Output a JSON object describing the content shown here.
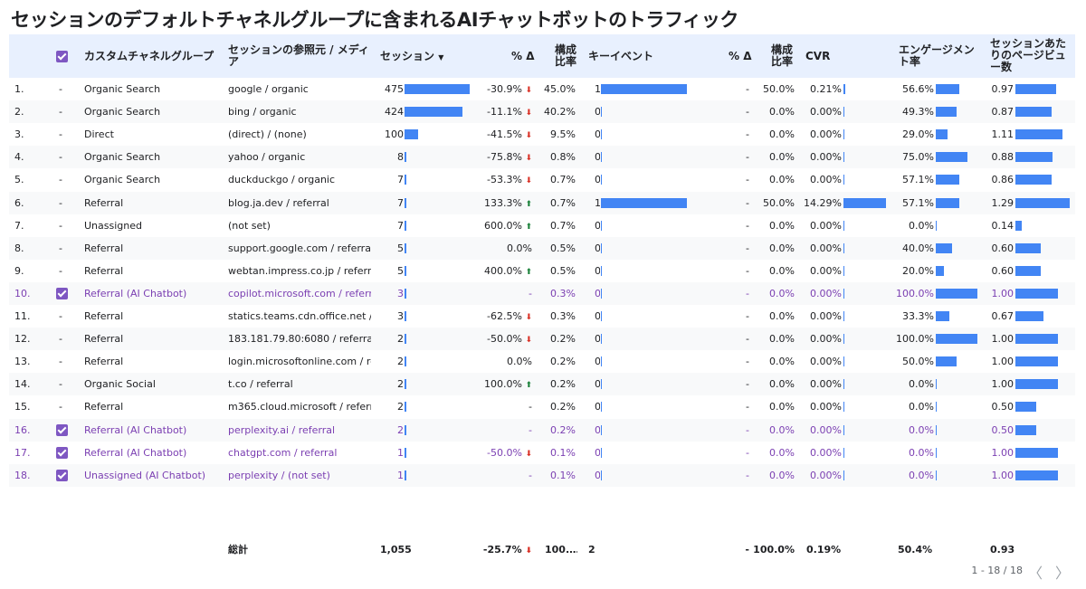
{
  "title": "セッションのデフォルトチャネルグループに含まれるAIチャットボットのトラフィック",
  "headers": {
    "channel": "カスタムチャネルグループ",
    "source1": "セッションの参照元 / メディ",
    "source2": "ア",
    "sessions": "セッション",
    "sort_icon": "▼",
    "delta1": "% Δ",
    "ratio1a": "構成",
    "ratio1b": "比率",
    "keyevent": "キーイベント",
    "delta2": "% Δ",
    "ratio2a": "構成",
    "ratio2b": "比率",
    "cvr": "CVR",
    "eng1": "エンゲージメン",
    "eng2": "ト率",
    "ppv1": "セッションあた",
    "ppv2": "りのページビュ",
    "ppv3": "ー数"
  },
  "colors": {
    "bar": "#4285f4",
    "selected_text": "#7b3fb2",
    "checkbox": "#7e57c2",
    "header_bg": "#e8f0fe",
    "down": "#d93025",
    "up": "#188038"
  },
  "rows": [
    {
      "idx": "1.",
      "sel": false,
      "channel": "Organic Search",
      "source": "google / organic",
      "sessions": "475",
      "sessions_v": 475,
      "delta": "-30.9%",
      "dir": "down",
      "ratio": "45.0%",
      "ke": "1",
      "ke_v": 1,
      "delta2": "-",
      "ratio2": "50.0%",
      "cvr": "0.21%",
      "cvr_v": 0.21,
      "eng": "56.6%",
      "eng_v": 56.6,
      "ppv": "0.97",
      "ppv_v": 0.97
    },
    {
      "idx": "2.",
      "sel": false,
      "channel": "Organic Search",
      "source": "bing / organic",
      "sessions": "424",
      "sessions_v": 424,
      "delta": "-11.1%",
      "dir": "down",
      "ratio": "40.2%",
      "ke": "0",
      "ke_v": 0,
      "delta2": "-",
      "ratio2": "0.0%",
      "cvr": "0.00%",
      "cvr_v": 0,
      "eng": "49.3%",
      "eng_v": 49.3,
      "ppv": "0.87",
      "ppv_v": 0.87
    },
    {
      "idx": "3.",
      "sel": false,
      "channel": "Direct",
      "source": "(direct) / (none)",
      "sessions": "100",
      "sessions_v": 100,
      "delta": "-41.5%",
      "dir": "down",
      "ratio": "9.5%",
      "ke": "0",
      "ke_v": 0,
      "delta2": "-",
      "ratio2": "0.0%",
      "cvr": "0.00%",
      "cvr_v": 0,
      "eng": "29.0%",
      "eng_v": 29.0,
      "ppv": "1.11",
      "ppv_v": 1.11
    },
    {
      "idx": "4.",
      "sel": false,
      "channel": "Organic Search",
      "source": "yahoo / organic",
      "sessions": "8",
      "sessions_v": 8,
      "delta": "-75.8%",
      "dir": "down",
      "ratio": "0.8%",
      "ke": "0",
      "ke_v": 0,
      "delta2": "-",
      "ratio2": "0.0%",
      "cvr": "0.00%",
      "cvr_v": 0,
      "eng": "75.0%",
      "eng_v": 75.0,
      "ppv": "0.88",
      "ppv_v": 0.88
    },
    {
      "idx": "5.",
      "sel": false,
      "channel": "Organic Search",
      "source": "duckduckgo / organic",
      "sessions": "7",
      "sessions_v": 7,
      "delta": "-53.3%",
      "dir": "down",
      "ratio": "0.7%",
      "ke": "0",
      "ke_v": 0,
      "delta2": "-",
      "ratio2": "0.0%",
      "cvr": "0.00%",
      "cvr_v": 0,
      "eng": "57.1%",
      "eng_v": 57.1,
      "ppv": "0.86",
      "ppv_v": 0.86
    },
    {
      "idx": "6.",
      "sel": false,
      "channel": "Referral",
      "source": "blog.ja.dev / referral",
      "sessions": "7",
      "sessions_v": 7,
      "delta": "133.3%",
      "dir": "up",
      "ratio": "0.7%",
      "ke": "1",
      "ke_v": 1,
      "delta2": "-",
      "ratio2": "50.0%",
      "cvr": "14.29%",
      "cvr_v": 14.29,
      "eng": "57.1%",
      "eng_v": 57.1,
      "ppv": "1.29",
      "ppv_v": 1.29
    },
    {
      "idx": "7.",
      "sel": false,
      "channel": "Unassigned",
      "source": "(not set)",
      "sessions": "7",
      "sessions_v": 7,
      "delta": "600.0%",
      "dir": "up",
      "ratio": "0.7%",
      "ke": "0",
      "ke_v": 0,
      "delta2": "-",
      "ratio2": "0.0%",
      "cvr": "0.00%",
      "cvr_v": 0,
      "eng": "0.0%",
      "eng_v": 0,
      "ppv": "0.14",
      "ppv_v": 0.14
    },
    {
      "idx": "8.",
      "sel": false,
      "channel": "Referral",
      "source": "support.google.com / referral",
      "sessions": "5",
      "sessions_v": 5,
      "delta": "0.0%",
      "dir": "",
      "ratio": "0.5%",
      "ke": "0",
      "ke_v": 0,
      "delta2": "-",
      "ratio2": "0.0%",
      "cvr": "0.00%",
      "cvr_v": 0,
      "eng": "40.0%",
      "eng_v": 40.0,
      "ppv": "0.60",
      "ppv_v": 0.6
    },
    {
      "idx": "9.",
      "sel": false,
      "channel": "Referral",
      "source": "webtan.impress.co.jp / referral",
      "sessions": "5",
      "sessions_v": 5,
      "delta": "400.0%",
      "dir": "up",
      "ratio": "0.5%",
      "ke": "0",
      "ke_v": 0,
      "delta2": "-",
      "ratio2": "0.0%",
      "cvr": "0.00%",
      "cvr_v": 0,
      "eng": "20.0%",
      "eng_v": 20.0,
      "ppv": "0.60",
      "ppv_v": 0.6
    },
    {
      "idx": "10.",
      "sel": true,
      "channel": "Referral (AI Chatbot)",
      "source": "copilot.microsoft.com / referral",
      "sessions": "3",
      "sessions_v": 3,
      "delta": "-",
      "dir": "",
      "ratio": "0.3%",
      "ke": "0",
      "ke_v": 0,
      "delta2": "-",
      "ratio2": "0.0%",
      "cvr": "0.00%",
      "cvr_v": 0,
      "eng": "100.0%",
      "eng_v": 100,
      "ppv": "1.00",
      "ppv_v": 1.0
    },
    {
      "idx": "11.",
      "sel": false,
      "channel": "Referral",
      "source": "statics.teams.cdn.office.net / re…",
      "sessions": "3",
      "sessions_v": 3,
      "delta": "-62.5%",
      "dir": "down",
      "ratio": "0.3%",
      "ke": "0",
      "ke_v": 0,
      "delta2": "-",
      "ratio2": "0.0%",
      "cvr": "0.00%",
      "cvr_v": 0,
      "eng": "33.3%",
      "eng_v": 33.3,
      "ppv": "0.67",
      "ppv_v": 0.67
    },
    {
      "idx": "12.",
      "sel": false,
      "channel": "Referral",
      "source": "183.181.79.80:6080 / referral",
      "sessions": "2",
      "sessions_v": 2,
      "delta": "-50.0%",
      "dir": "down",
      "ratio": "0.2%",
      "ke": "0",
      "ke_v": 0,
      "delta2": "-",
      "ratio2": "0.0%",
      "cvr": "0.00%",
      "cvr_v": 0,
      "eng": "100.0%",
      "eng_v": 100,
      "ppv": "1.00",
      "ppv_v": 1.0
    },
    {
      "idx": "13.",
      "sel": false,
      "channel": "Referral",
      "source": "login.microsoftonline.com / reff…",
      "sessions": "2",
      "sessions_v": 2,
      "delta": "0.0%",
      "dir": "",
      "ratio": "0.2%",
      "ke": "0",
      "ke_v": 0,
      "delta2": "-",
      "ratio2": "0.0%",
      "cvr": "0.00%",
      "cvr_v": 0,
      "eng": "50.0%",
      "eng_v": 50.0,
      "ppv": "1.00",
      "ppv_v": 1.0
    },
    {
      "idx": "14.",
      "sel": false,
      "channel": "Organic Social",
      "source": "t.co / referral",
      "sessions": "2",
      "sessions_v": 2,
      "delta": "100.0%",
      "dir": "up",
      "ratio": "0.2%",
      "ke": "0",
      "ke_v": 0,
      "delta2": "-",
      "ratio2": "0.0%",
      "cvr": "0.00%",
      "cvr_v": 0,
      "eng": "0.0%",
      "eng_v": 0,
      "ppv": "1.00",
      "ppv_v": 1.0
    },
    {
      "idx": "15.",
      "sel": false,
      "channel": "Referral",
      "source": "m365.cloud.microsoft / referral",
      "sessions": "2",
      "sessions_v": 2,
      "delta": "-",
      "dir": "",
      "ratio": "0.2%",
      "ke": "0",
      "ke_v": 0,
      "delta2": "-",
      "ratio2": "0.0%",
      "cvr": "0.00%",
      "cvr_v": 0,
      "eng": "0.0%",
      "eng_v": 0,
      "ppv": "0.50",
      "ppv_v": 0.5
    },
    {
      "idx": "16.",
      "sel": true,
      "channel": "Referral (AI Chatbot)",
      "source": "perplexity.ai / referral",
      "sessions": "2",
      "sessions_v": 2,
      "delta": "-",
      "dir": "",
      "ratio": "0.2%",
      "ke": "0",
      "ke_v": 0,
      "delta2": "-",
      "ratio2": "0.0%",
      "cvr": "0.00%",
      "cvr_v": 0,
      "eng": "0.0%",
      "eng_v": 0,
      "ppv": "0.50",
      "ppv_v": 0.5
    },
    {
      "idx": "17.",
      "sel": true,
      "channel": "Referral (AI Chatbot)",
      "source": "chatgpt.com / referral",
      "sessions": "1",
      "sessions_v": 1,
      "delta": "-50.0%",
      "dir": "down",
      "ratio": "0.1%",
      "ke": "0",
      "ke_v": 0,
      "delta2": "-",
      "ratio2": "0.0%",
      "cvr": "0.00%",
      "cvr_v": 0,
      "eng": "0.0%",
      "eng_v": 0,
      "ppv": "1.00",
      "ppv_v": 1.0
    },
    {
      "idx": "18.",
      "sel": true,
      "channel": "Unassigned (AI Chatbot)",
      "source": "perplexity / (not set)",
      "sessions": "1",
      "sessions_v": 1,
      "delta": "-",
      "dir": "",
      "ratio": "0.1%",
      "ke": "0",
      "ke_v": 0,
      "delta2": "-",
      "ratio2": "0.0%",
      "cvr": "0.00%",
      "cvr_v": 0,
      "eng": "0.0%",
      "eng_v": 0,
      "ppv": "1.00",
      "ppv_v": 1.0
    }
  ],
  "totals": {
    "label": "総計",
    "sessions": "1,055",
    "delta": "-25.7%",
    "ratio": "100.…",
    "ke": "2",
    "delta2": "-",
    "ratio2": "100.0%",
    "cvr": "0.19%",
    "eng": "50.4%",
    "ppv": "0.93"
  },
  "pager": {
    "text": "1 - 18 / 18",
    "prev": "〈",
    "next": "〉"
  }
}
